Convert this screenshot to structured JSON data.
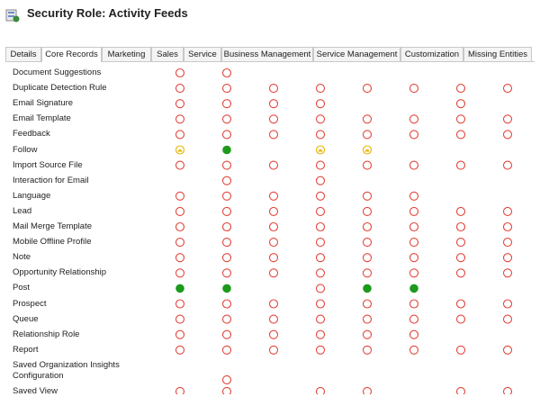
{
  "header": {
    "title": "Security Role: Activity Feeds"
  },
  "tabs": [
    {
      "label": "Details",
      "selected": false
    },
    {
      "label": "Core Records",
      "selected": true
    },
    {
      "label": "Marketing",
      "selected": false
    },
    {
      "label": "Sales",
      "selected": false
    },
    {
      "label": "Service",
      "selected": false
    },
    {
      "label": "Business Management",
      "selected": false
    },
    {
      "label": "Service Management",
      "selected": false
    },
    {
      "label": "Customization",
      "selected": false
    },
    {
      "label": "Missing Entities",
      "selected": false
    }
  ],
  "table": {
    "rows": [
      {
        "label": "Document Suggestions",
        "cells": [
          "none",
          "none",
          null,
          null,
          null,
          null,
          null,
          null
        ]
      },
      {
        "label": "Duplicate Detection Rule",
        "cells": [
          "none",
          "none",
          "none",
          "none",
          "none",
          "none",
          "none",
          "none"
        ]
      },
      {
        "label": "Email Signature",
        "cells": [
          "none",
          "none",
          "none",
          "none",
          null,
          null,
          "none",
          null
        ]
      },
      {
        "label": "Email Template",
        "cells": [
          "none",
          "none",
          "none",
          "none",
          "none",
          "none",
          "none",
          "none"
        ]
      },
      {
        "label": "Feedback",
        "cells": [
          "none",
          "none",
          "none",
          "none",
          "none",
          "none",
          "none",
          "none"
        ]
      },
      {
        "label": "Follow",
        "cells": [
          "user",
          "org",
          null,
          "user",
          "user",
          null,
          null,
          null
        ]
      },
      {
        "label": "Import Source File",
        "cells": [
          "none",
          "none",
          "none",
          "none",
          "none",
          "none",
          "none",
          "none"
        ]
      },
      {
        "label": "Interaction for Email",
        "cells": [
          null,
          "none",
          null,
          "none",
          null,
          null,
          null,
          null
        ]
      },
      {
        "label": "Language",
        "cells": [
          "none",
          "none",
          "none",
          "none",
          "none",
          "none",
          null,
          null
        ]
      },
      {
        "label": "Lead",
        "cells": [
          "none",
          "none",
          "none",
          "none",
          "none",
          "none",
          "none",
          "none"
        ]
      },
      {
        "label": "Mail Merge Template",
        "cells": [
          "none",
          "none",
          "none",
          "none",
          "none",
          "none",
          "none",
          "none"
        ]
      },
      {
        "label": "Mobile Offline Profile",
        "cells": [
          "none",
          "none",
          "none",
          "none",
          "none",
          "none",
          "none",
          "none"
        ]
      },
      {
        "label": "Note",
        "cells": [
          "none",
          "none",
          "none",
          "none",
          "none",
          "none",
          "none",
          "none"
        ]
      },
      {
        "label": "Opportunity Relationship",
        "cells": [
          "none",
          "none",
          "none",
          "none",
          "none",
          "none",
          "none",
          "none"
        ]
      },
      {
        "label": "Post",
        "cells": [
          "org",
          "org",
          null,
          "none",
          "org",
          "org",
          null,
          null
        ]
      },
      {
        "label": "Prospect",
        "cells": [
          "none",
          "none",
          "none",
          "none",
          "none",
          "none",
          "none",
          "none"
        ]
      },
      {
        "label": "Queue",
        "cells": [
          "none",
          "none",
          "none",
          "none",
          "none",
          "none",
          "none",
          "none"
        ]
      },
      {
        "label": "Relationship Role",
        "cells": [
          "none",
          "none",
          "none",
          "none",
          "none",
          "none",
          null,
          null
        ]
      },
      {
        "label": "Report",
        "cells": [
          "none",
          "none",
          "none",
          "none",
          "none",
          "none",
          "none",
          "none"
        ]
      },
      {
        "label": "Saved Organization Insights Configuration",
        "cells": [
          null,
          "none",
          null,
          null,
          null,
          null,
          null,
          null
        ]
      },
      {
        "label": "Saved View",
        "cells": [
          "none",
          "none",
          null,
          "none",
          "none",
          null,
          "none",
          "none"
        ]
      }
    ]
  }
}
